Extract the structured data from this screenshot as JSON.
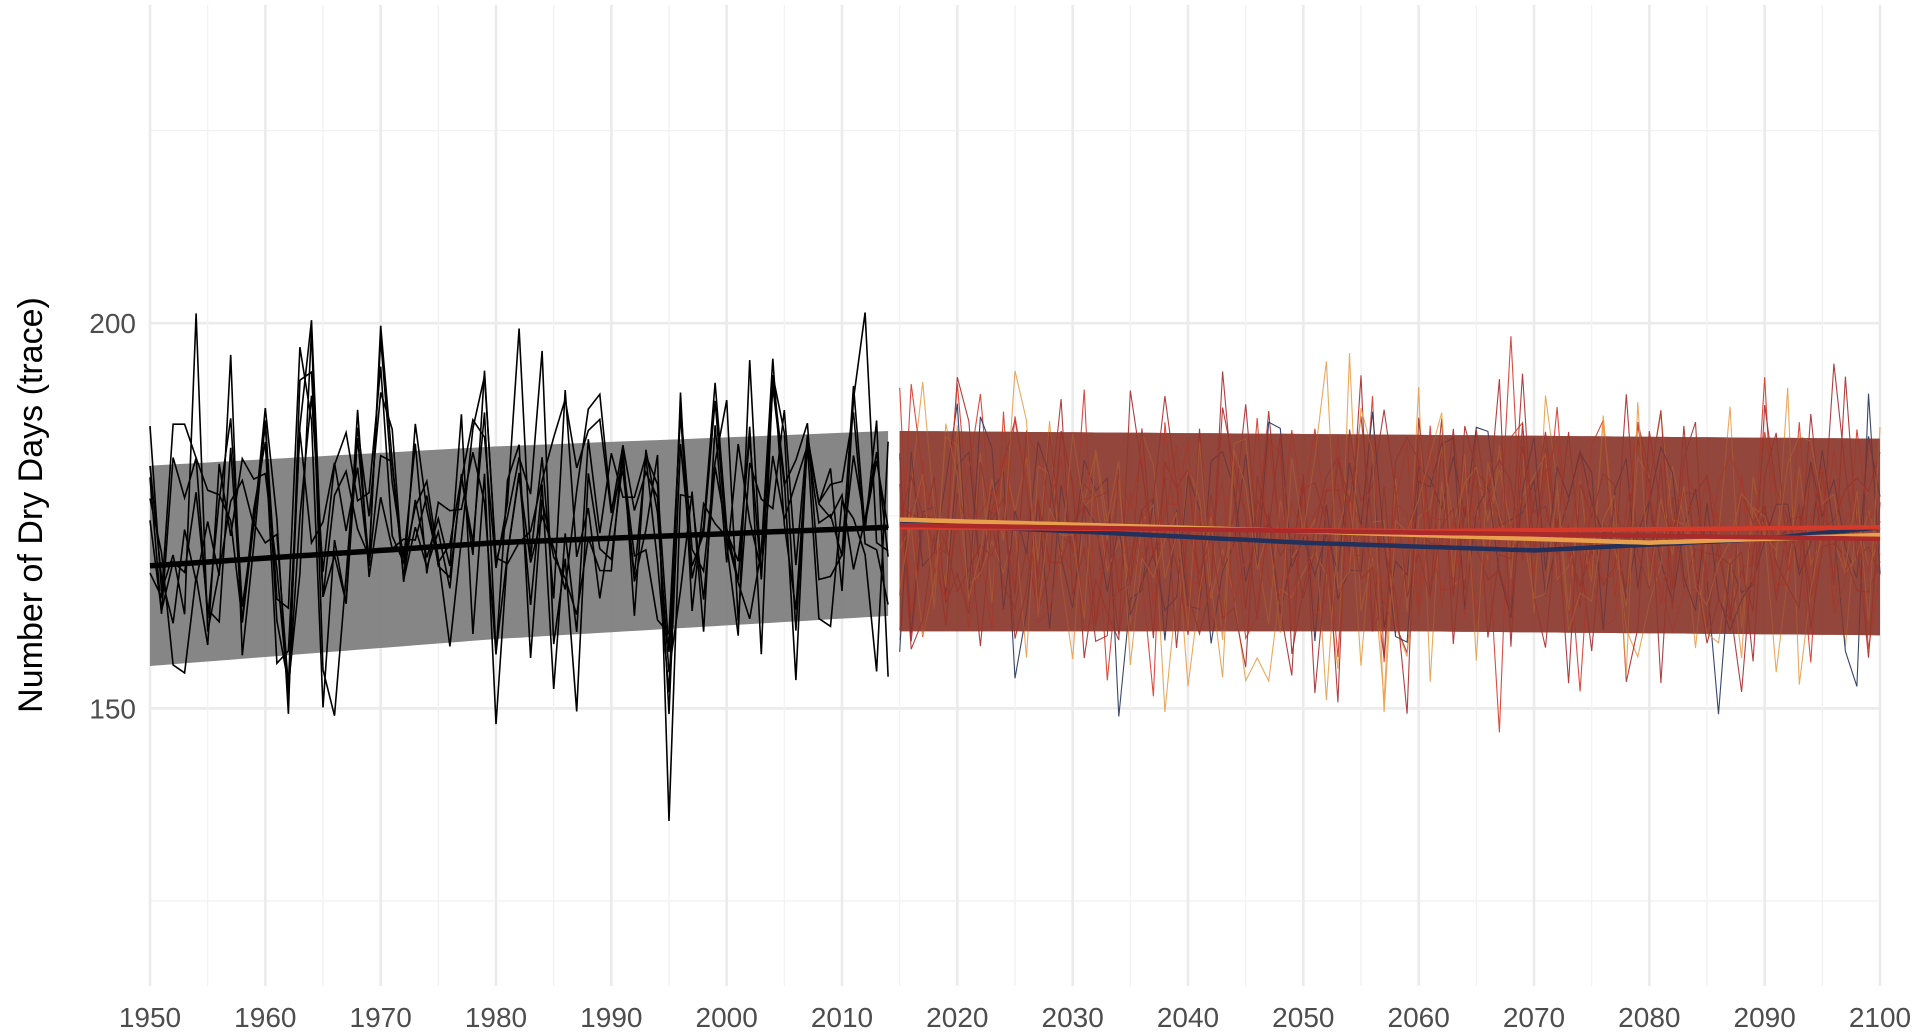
{
  "chart_data": {
    "type": "line",
    "title": "",
    "xlabel": "",
    "ylabel": "Number of Dry Days (trace)",
    "xlim": [
      1950,
      2100
    ],
    "ylim": [
      115,
      240
    ],
    "x_ticks": [
      "1950",
      "1960",
      "1970",
      "1980",
      "1990",
      "2000",
      "2010",
      "2020",
      "2030",
      "2040",
      "2050",
      "2060",
      "2070",
      "2080",
      "2090",
      "2100"
    ],
    "y_ticks": [
      "150",
      "200"
    ],
    "grid": true,
    "legend": "none",
    "historical": {
      "x_start": 1950,
      "x_end": 2014,
      "color": "#000000",
      "band_color": "#7f7f7f",
      "trend": [
        [
          1950,
          168.5
        ],
        [
          1980,
          171.5
        ],
        [
          2014,
          173.5
        ]
      ],
      "band": [
        [
          1950,
          155.5,
          181.5
        ],
        [
          1980,
          159.0,
          184.0
        ],
        [
          2014,
          162.0,
          186.0
        ]
      ],
      "annual_mean": [
        180,
        167,
        175,
        172,
        179,
        160,
        170,
        183,
        173,
        178,
        185,
        165,
        155,
        182,
        188,
        163,
        170,
        176,
        184,
        171,
        192,
        176,
        167,
        180,
        174,
        170,
        168,
        178,
        173,
        181,
        163,
        172,
        179,
        169,
        185,
        170,
        177,
        166,
        182,
        174,
        171,
        178,
        165,
        183,
        176,
        147,
        180,
        172,
        169,
        186,
        174,
        170,
        181,
        165,
        188,
        176,
        170,
        183,
        172,
        177,
        168,
        185,
        174,
        179,
        171
      ]
    },
    "projection": {
      "x_start": 2015,
      "x_end": 2100,
      "band_color": "#8b3a2f",
      "series": [
        {
          "color": "#22315c",
          "trend": [
            [
              2015,
              174.0
            ],
            [
              2030,
              173.0
            ],
            [
              2050,
              171.5
            ],
            [
              2070,
              170.5
            ],
            [
              2090,
              172.0
            ],
            [
              2100,
              173.5
            ]
          ]
        },
        {
          "color": "#e8a04c",
          "trend": [
            [
              2015,
              174.5
            ],
            [
              2050,
              173.0
            ],
            [
              2080,
              171.5
            ],
            [
              2100,
              172.5
            ]
          ]
        },
        {
          "color": "#d63a2a",
          "trend": [
            [
              2015,
              173.5
            ],
            [
              2060,
              173.0
            ],
            [
              2100,
              173.5
            ]
          ]
        },
        {
          "color": "#a82a2a",
          "trend": [
            [
              2015,
              173.8
            ],
            [
              2060,
              172.8
            ],
            [
              2100,
              172.0
            ]
          ]
        }
      ],
      "band": [
        [
          2015,
          160.0,
          186.0
        ],
        [
          2060,
          160.0,
          185.5
        ],
        [
          2100,
          159.5,
          185.0
        ]
      ]
    }
  }
}
